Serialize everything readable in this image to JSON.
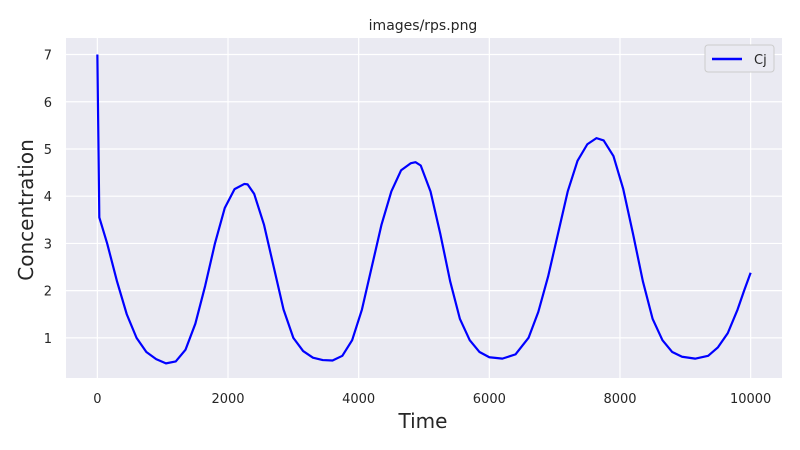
{
  "chart_data": {
    "type": "line",
    "title": "images/rps.png",
    "xlabel": "Time",
    "ylabel": "Concentration",
    "xlim": [
      -480,
      10480
    ],
    "ylim": [
      0.15,
      7.35
    ],
    "xticks": [
      0,
      2000,
      4000,
      6000,
      8000,
      10000
    ],
    "yticks": [
      1,
      2,
      3,
      4,
      5,
      6,
      7
    ],
    "grid": true,
    "legend": "top-right",
    "series": [
      {
        "name": "Cj",
        "color": "#0000ff",
        "x": [
          0,
          30,
          150,
          300,
          450,
          600,
          750,
          900,
          1050,
          1200,
          1350,
          1500,
          1650,
          1800,
          1950,
          2100,
          2250,
          2300,
          2400,
          2550,
          2700,
          2850,
          3000,
          3150,
          3300,
          3450,
          3600,
          3750,
          3900,
          4050,
          4200,
          4350,
          4500,
          4650,
          4800,
          4870,
          4950,
          5100,
          5250,
          5400,
          5550,
          5700,
          5850,
          6000,
          6200,
          6400,
          6600,
          6750,
          6900,
          7050,
          7200,
          7350,
          7500,
          7640,
          7750,
          7900,
          8050,
          8200,
          8350,
          8500,
          8650,
          8800,
          8950,
          9150,
          9350,
          9500,
          9650,
          9800,
          9900,
          10000
        ],
        "y": [
          7.0,
          3.55,
          3.0,
          2.2,
          1.5,
          1.0,
          0.7,
          0.55,
          0.46,
          0.5,
          0.75,
          1.3,
          2.1,
          3.0,
          3.75,
          4.15,
          4.26,
          4.25,
          4.05,
          3.4,
          2.5,
          1.6,
          1.0,
          0.72,
          0.58,
          0.53,
          0.52,
          0.62,
          0.95,
          1.6,
          2.5,
          3.4,
          4.1,
          4.55,
          4.7,
          4.72,
          4.65,
          4.1,
          3.2,
          2.2,
          1.4,
          0.95,
          0.7,
          0.59,
          0.56,
          0.65,
          1.0,
          1.55,
          2.3,
          3.2,
          4.1,
          4.75,
          5.1,
          5.23,
          5.18,
          4.85,
          4.15,
          3.2,
          2.2,
          1.4,
          0.95,
          0.7,
          0.6,
          0.56,
          0.62,
          0.8,
          1.1,
          1.6,
          2.0,
          2.38
        ]
      }
    ]
  }
}
